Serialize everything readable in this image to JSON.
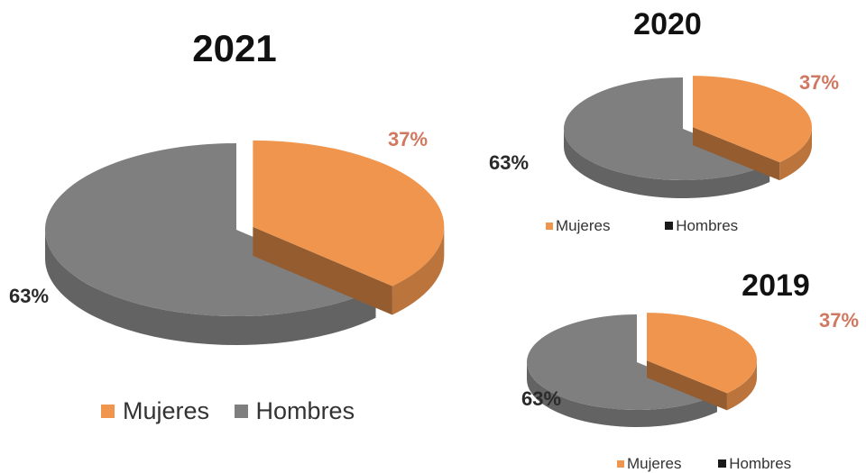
{
  "colors": {
    "mujeres": "#f0954d",
    "hombres": "#7f7f7f",
    "mujeres_label": "#d07860",
    "hombres_label": "#2a2a2a",
    "legend_hombres_small": "#1a1a1a"
  },
  "chart_data": [
    {
      "type": "pie",
      "title": "2021",
      "categories": [
        "Mujeres",
        "Hombres"
      ],
      "values": [
        37,
        63
      ],
      "data_labels": [
        "37%",
        "63%"
      ],
      "legend": [
        "Mujeres",
        "Hombres"
      ],
      "legend_position": "bottom",
      "exploded_slice": "Mujeres",
      "style": "3d"
    },
    {
      "type": "pie",
      "title": "2020",
      "categories": [
        "Mujeres",
        "Hombres"
      ],
      "values": [
        37,
        63
      ],
      "data_labels": [
        "37%",
        "63%"
      ],
      "legend": [
        "Mujeres",
        "Hombres"
      ],
      "legend_position": "bottom",
      "exploded_slice": "Mujeres",
      "style": "3d"
    },
    {
      "type": "pie",
      "title": "2019",
      "categories": [
        "Mujeres",
        "Hombres"
      ],
      "values": [
        37,
        63
      ],
      "data_labels": [
        "37%",
        "63%"
      ],
      "legend": [
        "Mujeres",
        "Hombres"
      ],
      "legend_position": "bottom",
      "exploded_slice": "Mujeres",
      "style": "3d"
    }
  ]
}
